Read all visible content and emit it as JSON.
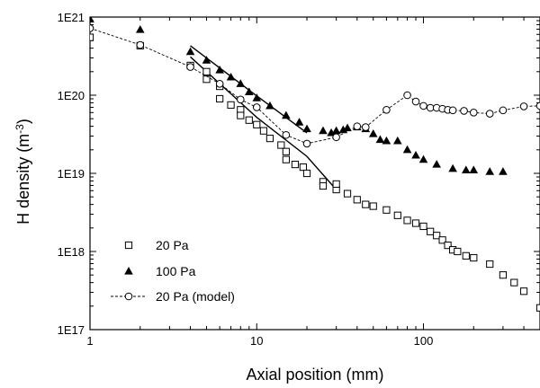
{
  "chart_data": {
    "type": "scatter",
    "title": "",
    "xlabel": "Axial position (mm)",
    "ylabel_main": "H density (m",
    "ylabel_sup": "-3",
    "ylabel_end": ")",
    "x_scale": "log",
    "y_scale": "log",
    "xlim": [
      1,
      500
    ],
    "ylim": [
      1e+17,
      1e+21
    ],
    "x_ticks": [
      {
        "value": 1,
        "label": "1"
      },
      {
        "value": 10,
        "label": "10"
      },
      {
        "value": 100,
        "label": "100"
      }
    ],
    "y_ticks": [
      {
        "value": 1e+17,
        "label": "1E17"
      },
      {
        "value": 1e+18,
        "label": "1E18"
      },
      {
        "value": 1e+19,
        "label": "1E19"
      },
      {
        "value": 1e+20,
        "label": "1E20"
      },
      {
        "value": 1e+21,
        "label": "1E21"
      }
    ],
    "grid": false,
    "legend_position": "bottom-left",
    "series": [
      {
        "name": "20 Pa",
        "marker": "open-square",
        "color": "#000000",
        "points": [
          [
            1,
            5.5e+20
          ],
          [
            2,
            4.3e+20
          ],
          [
            4,
            2.4e+20
          ],
          [
            5,
            2e+20
          ],
          [
            5,
            1.6e+20
          ],
          [
            6,
            1.3e+20
          ],
          [
            6,
            9e+19
          ],
          [
            7,
            7.5e+19
          ],
          [
            8,
            6.5e+19
          ],
          [
            8,
            5.5e+19
          ],
          [
            9,
            4.8e+19
          ],
          [
            10,
            4.2e+19
          ],
          [
            11,
            3.5e+19
          ],
          [
            12,
            2.8e+19
          ],
          [
            14,
            2.3e+19
          ],
          [
            15,
            1.9e+19
          ],
          [
            15,
            1.5e+19
          ],
          [
            17,
            1.3e+19
          ],
          [
            19,
            1.2e+19
          ],
          [
            20,
            1e+19
          ],
          [
            25,
            7.8e+18
          ],
          [
            25,
            6.9e+18
          ],
          [
            30,
            6.2e+18
          ],
          [
            30,
            7.3e+18
          ],
          [
            35,
            5.5e+18
          ],
          [
            40,
            4.6e+18
          ],
          [
            45,
            4e+18
          ],
          [
            50,
            3.8e+18
          ],
          [
            60,
            3.4e+18
          ],
          [
            70,
            2.9e+18
          ],
          [
            80,
            2.5e+18
          ],
          [
            90,
            2.3e+18
          ],
          [
            100,
            2.1e+18
          ],
          [
            110,
            1.8e+18
          ],
          [
            120,
            1.6e+18
          ],
          [
            130,
            1.4e+18
          ],
          [
            140,
            1.2e+18
          ],
          [
            150,
            1.05e+18
          ],
          [
            160,
            1e+18
          ],
          [
            180,
            8.8e+17
          ],
          [
            200,
            8.3e+17
          ],
          [
            250,
            6.9e+17
          ],
          [
            300,
            5e+17
          ],
          [
            350,
            4e+17
          ],
          [
            400,
            3.1e+17
          ],
          [
            500,
            1.9e+17
          ]
        ]
      },
      {
        "name": "100 Pa",
        "marker": "filled-triangle",
        "color": "#000000",
        "points": [
          [
            1,
            9.4e+20
          ],
          [
            2,
            6.9e+20
          ],
          [
            4,
            3.6e+20
          ],
          [
            5,
            2.8e+20
          ],
          [
            6,
            2.1e+20
          ],
          [
            7,
            1.7e+20
          ],
          [
            8,
            1.4e+20
          ],
          [
            9,
            1.1e+20
          ],
          [
            10,
            9.2e+19
          ],
          [
            12,
            7.3e+19
          ],
          [
            15,
            5.5e+19
          ],
          [
            18,
            4.5e+19
          ],
          [
            20,
            3.7e+19
          ],
          [
            25,
            3.5e+19
          ],
          [
            28,
            3.3e+19
          ],
          [
            30,
            3.5e+19
          ],
          [
            33,
            3.6e+19
          ],
          [
            35,
            3.8e+19
          ],
          [
            40,
            3.9e+19
          ],
          [
            45,
            3.7e+19
          ],
          [
            50,
            3.2e+19
          ],
          [
            55,
            2.7e+19
          ],
          [
            60,
            2.6e+19
          ],
          [
            70,
            2.6e+19
          ],
          [
            80,
            2e+19
          ],
          [
            90,
            1.7e+19
          ],
          [
            100,
            1.5e+19
          ],
          [
            120,
            1.3e+19
          ],
          [
            150,
            1.15e+19
          ],
          [
            180,
            1.1e+19
          ],
          [
            200,
            1.1e+19
          ],
          [
            250,
            1.05e+19
          ],
          [
            300,
            1.05e+19
          ]
        ]
      },
      {
        "name": "20 Pa (model)",
        "marker": "open-circle",
        "color": "#000000",
        "line": "dashed",
        "points": [
          [
            1,
            7.2e+20
          ],
          [
            2,
            4.4e+20
          ],
          [
            4,
            2.3e+20
          ],
          [
            6,
            1.4e+20
          ],
          [
            8,
            8.8e+19
          ],
          [
            10,
            7e+19
          ],
          [
            15,
            3.1e+19
          ],
          [
            20,
            2.4e+19
          ],
          [
            30,
            2.9e+19
          ],
          [
            40,
            4e+19
          ],
          [
            45,
            3.9e+19
          ],
          [
            60,
            6.5e+19
          ],
          [
            80,
            1e+20
          ],
          [
            90,
            8.3e+19
          ],
          [
            100,
            7.3e+19
          ],
          [
            110,
            6.9e+19
          ],
          [
            120,
            6.9e+19
          ],
          [
            130,
            6.7e+19
          ],
          [
            140,
            6.5e+19
          ],
          [
            150,
            6.4e+19
          ],
          [
            175,
            6.3e+19
          ],
          [
            200,
            6e+19
          ],
          [
            250,
            5.8e+19
          ],
          [
            300,
            6.4e+19
          ],
          [
            400,
            7.2e+19
          ],
          [
            500,
            7.3e+19
          ]
        ]
      }
    ],
    "fit_lines": [
      {
        "points": [
          [
            4,
            4.3e+20
          ],
          [
            10,
            9.8e+19
          ],
          [
            20,
            3.3e+19
          ]
        ]
      },
      {
        "points": [
          [
            4,
            3.1e+20
          ],
          [
            10,
            5.2e+19
          ],
          [
            20,
            1.65e+19
          ],
          [
            30,
            6.2e+18
          ]
        ]
      }
    ]
  }
}
